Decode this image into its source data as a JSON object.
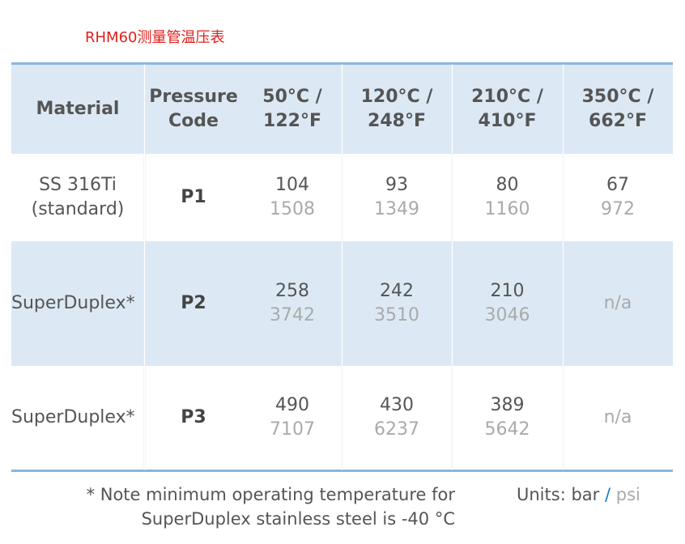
{
  "title": "RHM60测量管温压表",
  "table": {
    "header": [
      [
        "Material"
      ],
      [
        "Pressure",
        "Code"
      ],
      [
        "50°C /",
        "122°F"
      ],
      [
        "120°C /",
        "248°F"
      ],
      [
        "210°C /",
        "410°F"
      ],
      [
        "350°C /",
        "662°F"
      ]
    ],
    "rows": [
      {
        "material": [
          "SS 316Ti",
          "(standard)"
        ],
        "code": "P1",
        "cells": [
          {
            "bar": 104,
            "psi": 1508
          },
          {
            "bar": 93,
            "psi": 1349
          },
          {
            "bar": 80,
            "psi": 1160
          },
          {
            "bar": 67,
            "psi": 972
          }
        ]
      },
      {
        "material": [
          "SuperDuplex*"
        ],
        "code": "P2",
        "cells": [
          {
            "bar": 258,
            "psi": 3742
          },
          {
            "bar": 242,
            "psi": 3510
          },
          {
            "bar": 210,
            "psi": 3046
          },
          {
            "na": "n/a"
          }
        ]
      },
      {
        "material": [
          "SuperDuplex*"
        ],
        "code": "P3",
        "cells": [
          {
            "bar": 490,
            "psi": 7107
          },
          {
            "bar": 430,
            "psi": 6237
          },
          {
            "bar": 389,
            "psi": 5642
          },
          {
            "na": "n/a"
          }
        ]
      }
    ]
  },
  "footer": {
    "note": [
      "* Note minimum operating temperature for",
      "SuperDuplex stainless steel is -40 °C"
    ],
    "units": {
      "label": "Units: bar",
      "separator": "/",
      "alt": "psi"
    }
  }
}
